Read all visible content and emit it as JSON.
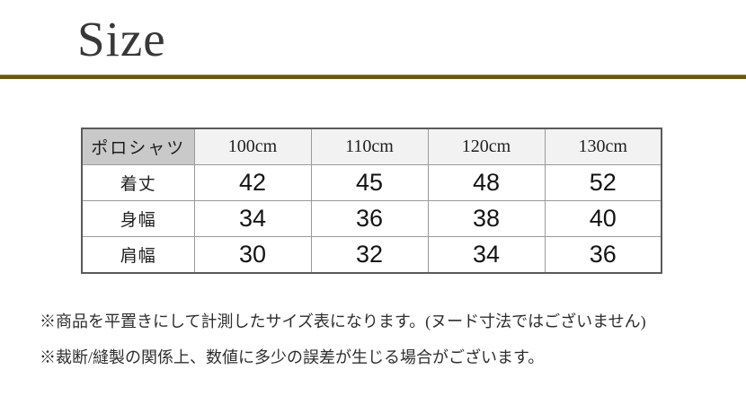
{
  "page": {
    "title": "Size"
  },
  "colors": {
    "divider_gold": "#6b5712",
    "divider_gold_highlight": "#9a8544",
    "header_corner_bg": "#c9c9c9",
    "header_size_bg": "#f2f2f2",
    "table_border": "#9a9a9a",
    "text": "#2e2e2e"
  },
  "size_table": {
    "corner_label": "ポロシャツ",
    "size_headers": [
      "100cm",
      "110cm",
      "120cm",
      "130cm"
    ],
    "rows": [
      {
        "label": "着丈",
        "values": [
          "42",
          "45",
          "48",
          "52"
        ]
      },
      {
        "label": "身幅",
        "values": [
          "34",
          "36",
          "38",
          "40"
        ]
      },
      {
        "label": "肩幅",
        "values": [
          "30",
          "32",
          "34",
          "36"
        ]
      }
    ]
  },
  "notes": [
    "※商品を平置きにして計測したサイズ表になります。(ヌード寸法ではございません)",
    "※裁断/縫製の関係上、数値に多少の誤差が生じる場合がございます。"
  ]
}
